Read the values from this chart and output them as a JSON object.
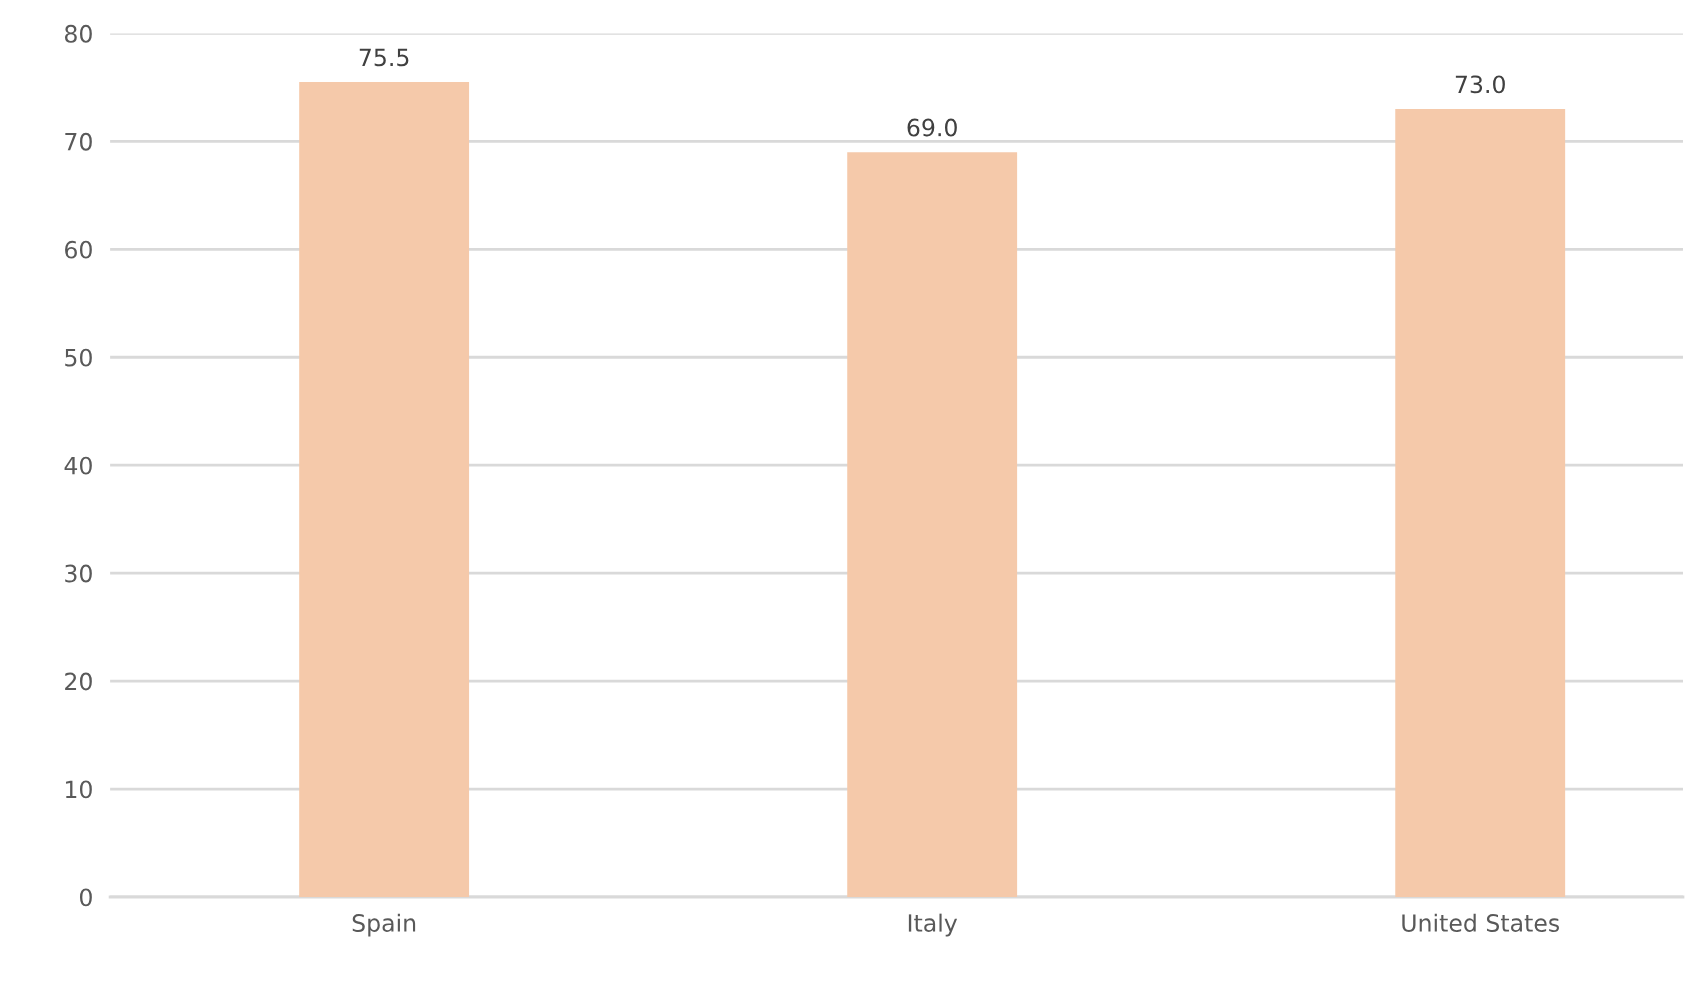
{
  "chart_data": {
    "type": "bar",
    "categories": [
      "Spain",
      "Italy",
      "United States"
    ],
    "values": [
      75.5,
      69.0,
      73.0
    ],
    "value_labels": [
      "75.5",
      "69.0",
      "73.0"
    ],
    "color": "#f5c9aa",
    "ylim": [
      0,
      80
    ],
    "yticks": [
      0,
      10,
      20,
      30,
      40,
      50,
      60,
      70,
      80
    ],
    "grid": "y"
  }
}
